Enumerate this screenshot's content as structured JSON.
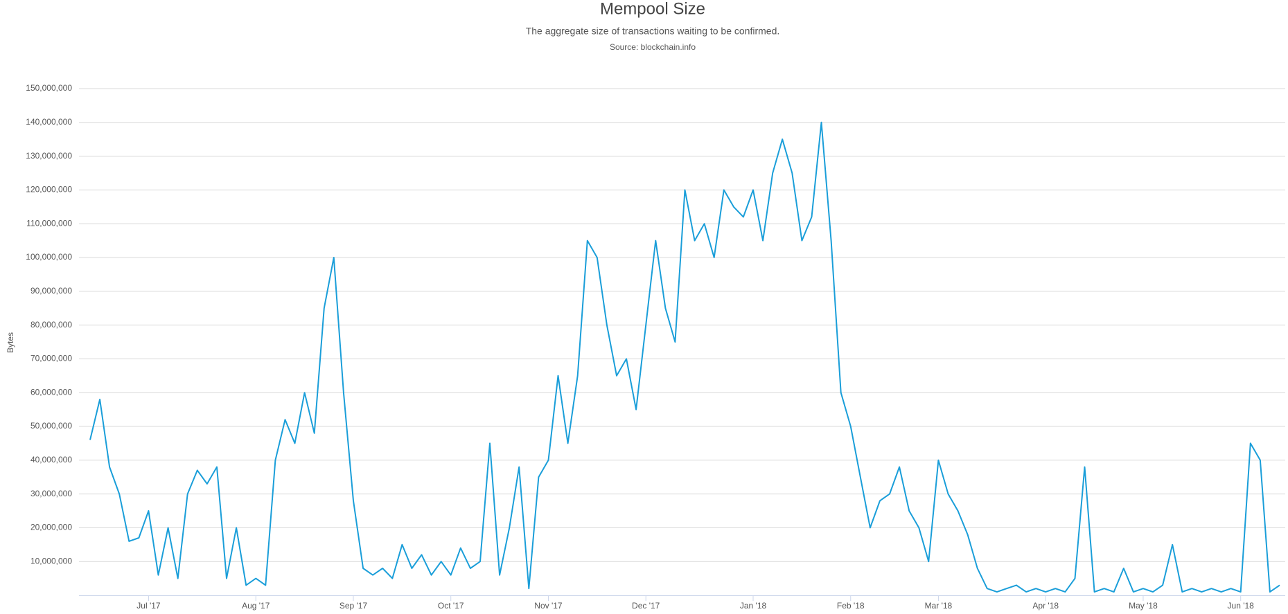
{
  "chart_data": {
    "type": "line",
    "title": "Mempool Size",
    "subtitle": "The aggregate size of transactions waiting to be confirmed.",
    "source": "Source: blockchain.info",
    "y_label": "Bytes",
    "categories": [
      null,
      null,
      null,
      null,
      null,
      null,
      "Jul '17",
      null,
      null,
      null,
      null,
      null,
      null,
      null,
      null,
      null,
      null,
      "Aug '17",
      null,
      null,
      null,
      null,
      null,
      null,
      null,
      null,
      null,
      "Sep '17",
      null,
      null,
      null,
      null,
      null,
      null,
      null,
      null,
      null,
      "Oct '17",
      null,
      null,
      null,
      null,
      null,
      null,
      null,
      null,
      null,
      "Nov '17",
      null,
      null,
      null,
      null,
      null,
      null,
      null,
      null,
      null,
      "Dec '17",
      null,
      null,
      null,
      null,
      null,
      null,
      null,
      null,
      null,
      null,
      "Jan '18",
      null,
      null,
      null,
      null,
      null,
      null,
      null,
      null,
      null,
      "Feb '18",
      null,
      null,
      null,
      null,
      null,
      null,
      null,
      null,
      "Mar '18",
      null,
      null,
      null,
      null,
      null,
      null,
      null,
      null,
      null,
      null,
      "Apr '18",
      null,
      null,
      null,
      null,
      null,
      null,
      null,
      null,
      null,
      "May '18",
      null,
      null,
      null,
      null,
      null,
      null,
      null,
      null,
      null,
      "Jun '18",
      null,
      null,
      null,
      null
    ],
    "series": [
      {
        "name": "Mempool Size",
        "color": "#1a9ed9",
        "values": [
          46000000,
          58000000,
          38000000,
          30000000,
          16000000,
          17000000,
          25000000,
          6000000,
          20000000,
          5000000,
          30000000,
          37000000,
          33000000,
          38000000,
          5000000,
          20000000,
          3000000,
          5000000,
          3000000,
          40000000,
          52000000,
          45000000,
          60000000,
          48000000,
          85000000,
          100000000,
          60000000,
          28000000,
          8000000,
          6000000,
          8000000,
          5000000,
          15000000,
          8000000,
          12000000,
          6000000,
          10000000,
          6000000,
          14000000,
          8000000,
          10000000,
          45000000,
          6000000,
          20000000,
          38000000,
          2000000,
          35000000,
          40000000,
          65000000,
          45000000,
          65000000,
          105000000,
          100000000,
          80000000,
          65000000,
          70000000,
          55000000,
          80000000,
          105000000,
          85000000,
          75000000,
          120000000,
          105000000,
          110000000,
          100000000,
          120000000,
          115000000,
          112000000,
          120000000,
          105000000,
          125000000,
          135000000,
          125000000,
          105000000,
          112000000,
          140000000,
          105000000,
          60000000,
          50000000,
          35000000,
          20000000,
          28000000,
          30000000,
          38000000,
          25000000,
          20000000,
          10000000,
          40000000,
          30000000,
          25000000,
          18000000,
          8000000,
          2000000,
          1000000,
          2000000,
          3000000,
          1000000,
          2000000,
          1000000,
          2000000,
          1000000,
          5000000,
          38000000,
          1000000,
          2000000,
          1000000,
          8000000,
          1000000,
          2000000,
          1000000,
          3000000,
          15000000,
          1000000,
          2000000,
          1000000,
          2000000,
          1000000,
          2000000,
          1000000,
          45000000,
          40000000,
          1000000,
          3000000
        ]
      }
    ],
    "ylim": [
      0,
      150000000
    ],
    "yticks": [
      {
        "value": 10000000,
        "label": "10,000,000"
      },
      {
        "value": 20000000,
        "label": "20,000,000"
      },
      {
        "value": 30000000,
        "label": "30,000,000"
      },
      {
        "value": 40000000,
        "label": "40,000,000"
      },
      {
        "value": 50000000,
        "label": "50,000,000"
      },
      {
        "value": 60000000,
        "label": "60,000,000"
      },
      {
        "value": 70000000,
        "label": "70,000,000"
      },
      {
        "value": 80000000,
        "label": "80,000,000"
      },
      {
        "value": 90000000,
        "label": "90,000,000"
      },
      {
        "value": 100000000,
        "label": "100,000,000"
      },
      {
        "value": 110000000,
        "label": "110,000,000"
      },
      {
        "value": 120000000,
        "label": "120,000,000"
      },
      {
        "value": 130000000,
        "label": "130,000,000"
      },
      {
        "value": 140000000,
        "label": "140,000,000"
      },
      {
        "value": 150000000,
        "label": "150,000,000"
      }
    ],
    "grid": true
  }
}
